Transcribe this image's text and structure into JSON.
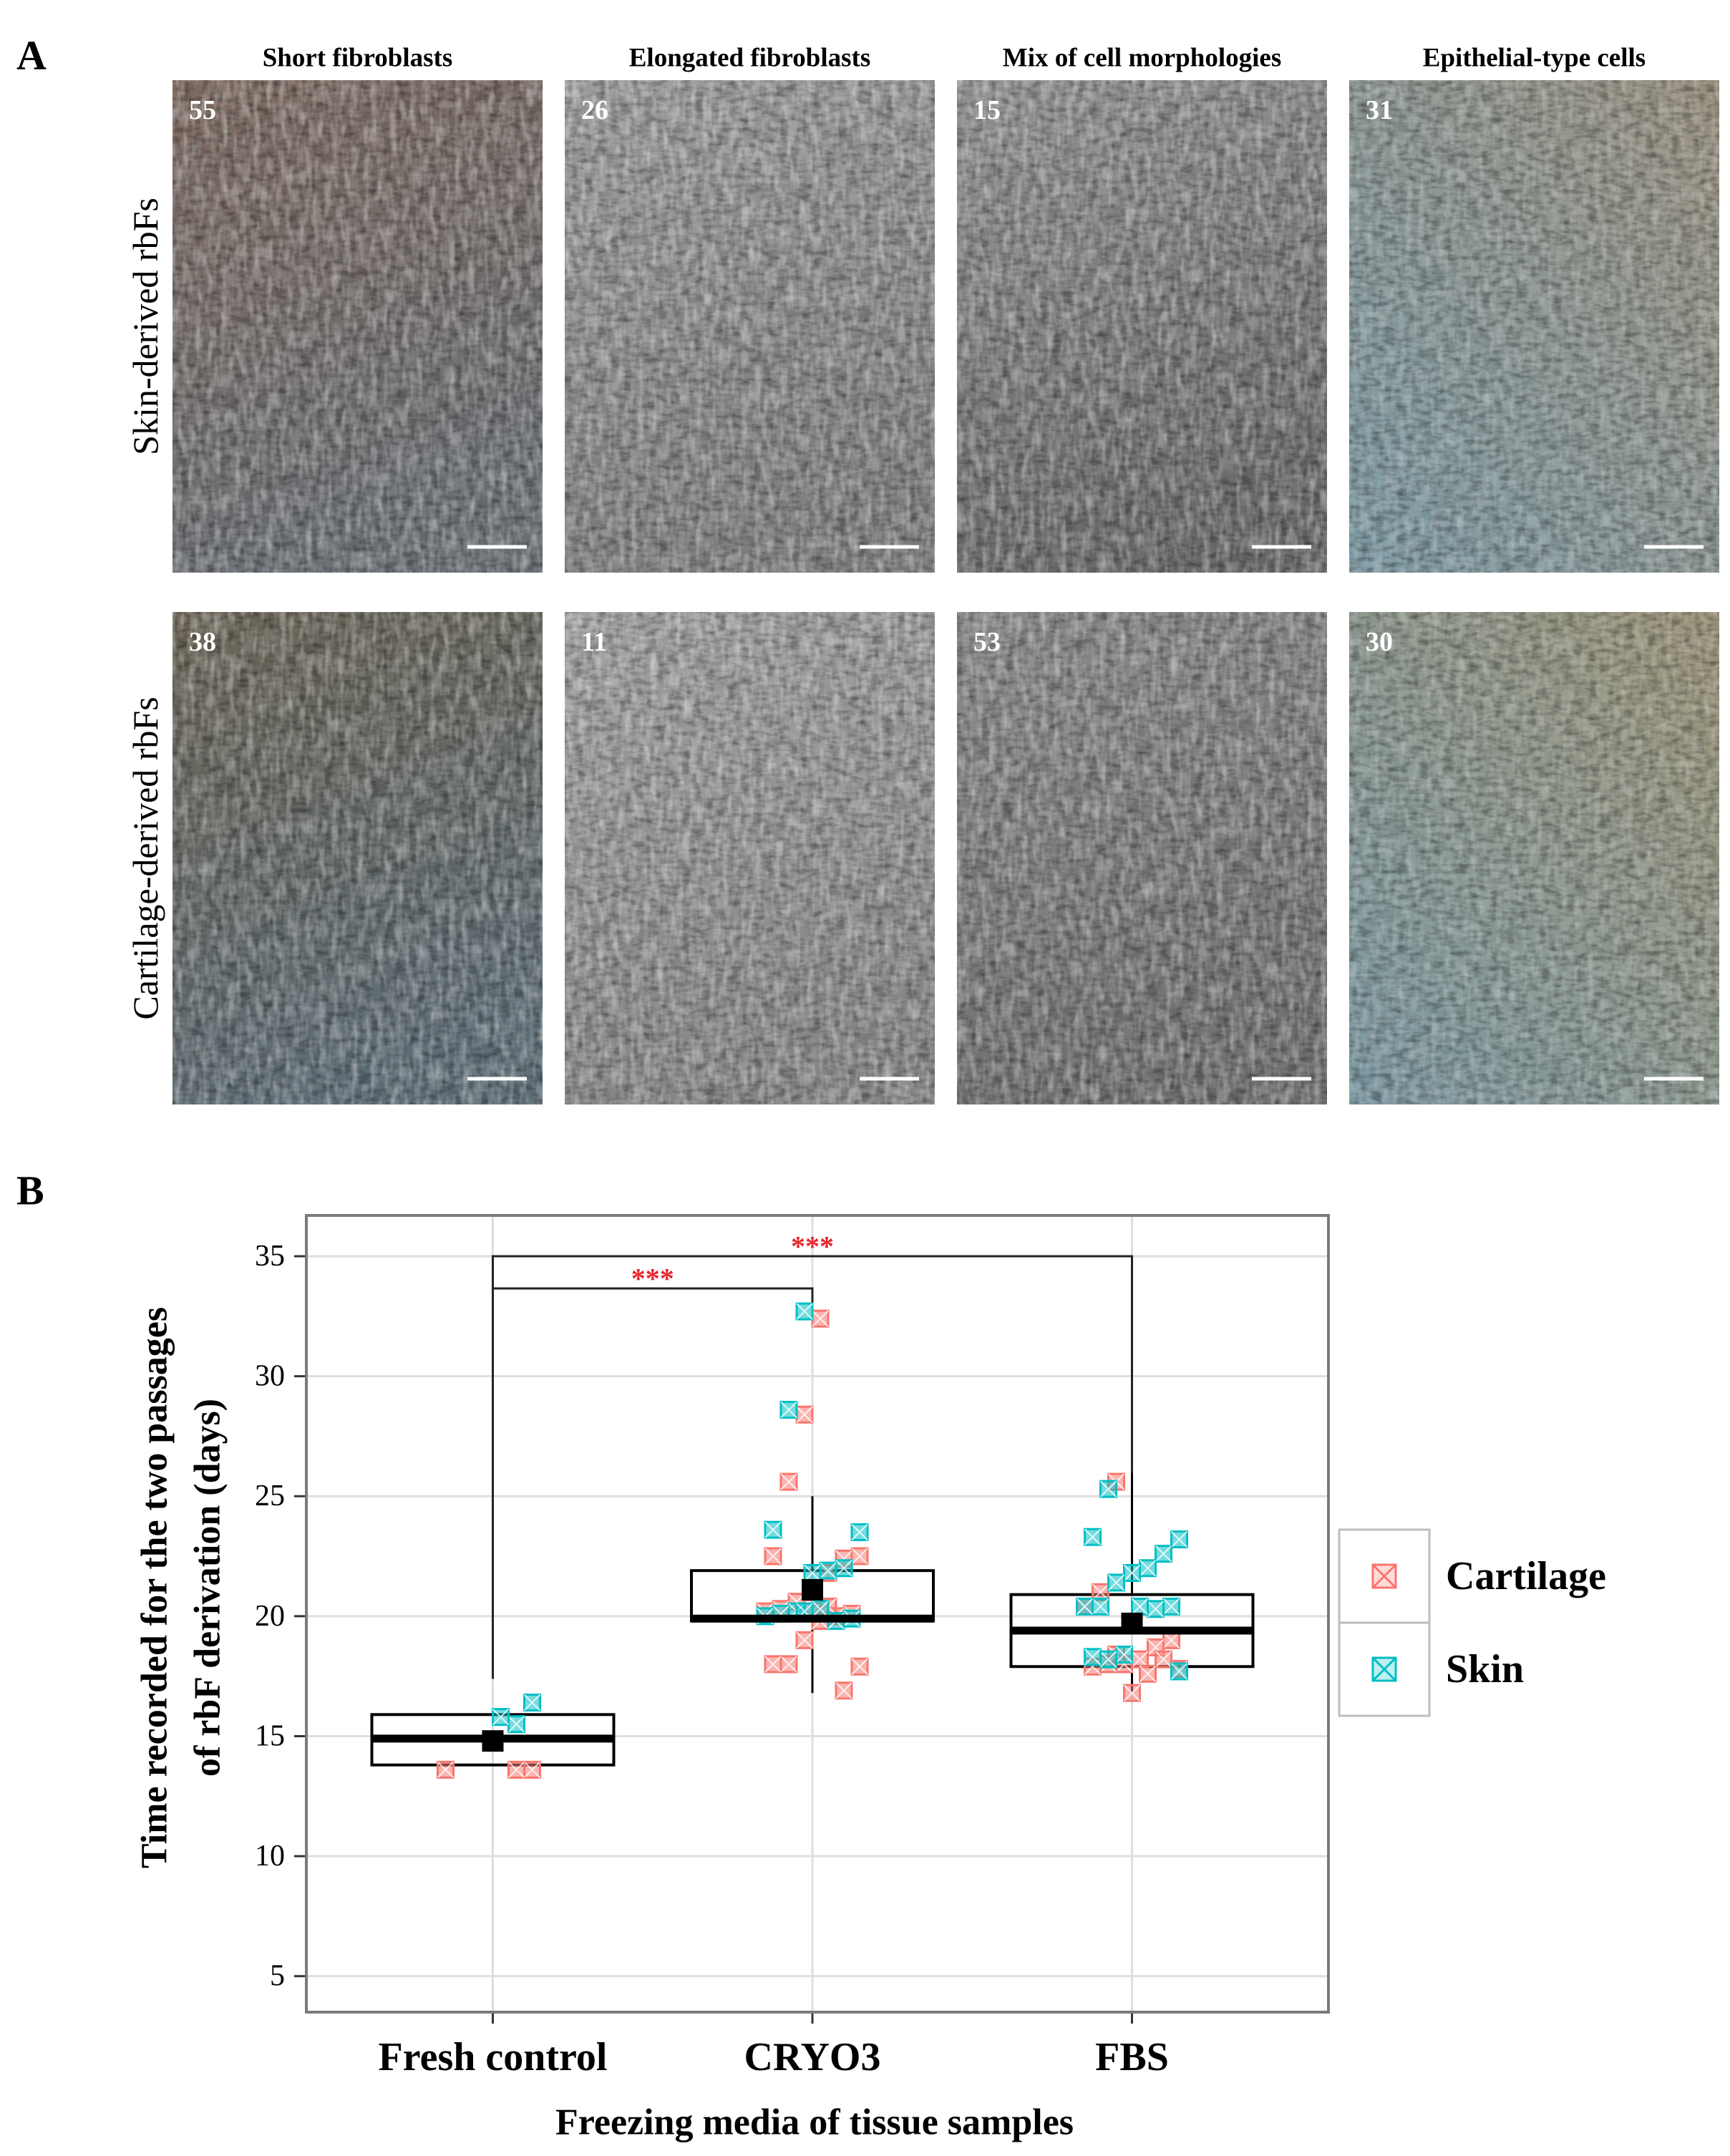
{
  "panel_a": {
    "label": "A",
    "columns": [
      "Short fibroblasts",
      "Elongated fibroblasts",
      "Mix of cell morphologies",
      "Epithelial-type cells"
    ],
    "rows": [
      "Skin-derived rbFs",
      "Cartilage-derived rbFs"
    ],
    "counts": [
      [
        55,
        26,
        15,
        31
      ],
      [
        38,
        11,
        53,
        30
      ]
    ]
  },
  "chart_data": {
    "type": "box",
    "panel_label": "B",
    "ylabel": [
      "Time recorded for the two passages",
      "of rbF derivation (days)"
    ],
    "xlabel": "Freezing media of tissue samples",
    "categories": [
      "Fresh control",
      "CRYO3",
      "FBS"
    ],
    "ylim": [
      3.5,
      36.7
    ],
    "yticks": [
      5,
      10,
      15,
      20,
      25,
      30,
      35
    ],
    "grid": true,
    "legend_position": "right",
    "boxes": {
      "q1": [
        13.8,
        19.8,
        17.9
      ],
      "median": [
        14.9,
        19.9,
        19.4
      ],
      "q3": [
        15.9,
        21.9,
        20.9
      ],
      "mean": [
        14.8,
        21.1,
        19.7
      ],
      "whisker_low": [
        null,
        16.8,
        16.8
      ],
      "whisker_high": [
        null,
        25.0,
        26.0
      ]
    },
    "series": [
      {
        "name": "Cartilage",
        "color": "#f8766d",
        "groups": [
          0,
          0,
          0,
          1,
          1,
          1,
          1,
          1,
          1,
          1,
          1,
          1,
          1,
          1,
          1,
          1,
          1,
          1,
          1,
          1,
          1,
          1,
          1,
          1,
          2,
          2,
          2,
          2,
          2,
          2,
          2,
          2,
          2,
          2,
          2,
          2,
          2,
          2
        ],
        "values": [
          13.6,
          13.6,
          13.6,
          32.4,
          28.4,
          25.6,
          22.5,
          22.5,
          22.4,
          21.8,
          21.0,
          20.6,
          20.3,
          20.2,
          20.1,
          20.0,
          19.8,
          19.0,
          18.0,
          18.0,
          17.9,
          16.9,
          20.4,
          20.2,
          25.6,
          21.0,
          20.4,
          19.0,
          18.7,
          18.2,
          18.0,
          18.0,
          17.9,
          17.8,
          18.2,
          17.6,
          16.8,
          18.4
        ]
      },
      {
        "name": "Skin",
        "color": "#00bfc4",
        "groups": [
          0,
          0,
          0,
          1,
          1,
          1,
          1,
          1,
          1,
          1,
          1,
          1,
          1,
          1,
          1,
          1,
          1,
          2,
          2,
          2,
          2,
          2,
          2,
          2,
          2,
          2,
          2,
          2,
          2,
          2,
          2,
          2,
          2
        ],
        "values": [
          16.4,
          15.5,
          15.8,
          32.7,
          28.6,
          23.6,
          23.5,
          22.0,
          21.9,
          21.8,
          20.2,
          20.1,
          20.0,
          19.9,
          19.8,
          20.3,
          20.2,
          25.3,
          23.3,
          23.2,
          22.6,
          22.0,
          21.8,
          21.4,
          20.4,
          20.4,
          20.4,
          20.3,
          20.4,
          18.4,
          18.2,
          18.3,
          17.7
        ]
      }
    ],
    "significance": [
      {
        "groups": [
          0,
          1
        ],
        "label": "***"
      },
      {
        "groups": [
          0,
          2
        ],
        "label": "***"
      }
    ]
  }
}
